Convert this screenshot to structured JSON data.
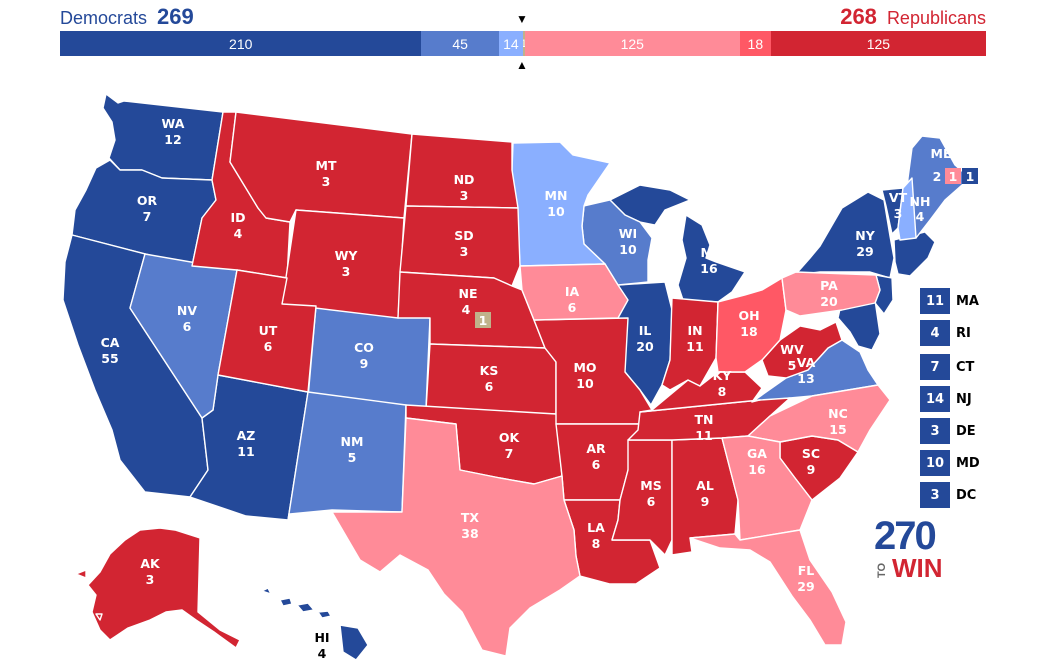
{
  "header": {
    "dem_label": "Democrats",
    "dem_total": "269",
    "rep_total": "268",
    "rep_label": "Republicans"
  },
  "colors": {
    "safe_dem": "#244999",
    "likely_dem": "#577ccc",
    "lean_dem": "#8aafff",
    "lean_rep": "#ff8b98",
    "likely_rep": "#ff5865",
    "safe_rep": "#d22532",
    "tossup": "#c0b28b"
  },
  "bar": [
    {
      "label": "210",
      "value": 210,
      "color": "#244999"
    },
    {
      "label": "45",
      "value": 45,
      "color": "#577ccc"
    },
    {
      "label": "14",
      "value": 14,
      "color": "#8aafff"
    },
    {
      "label": "1",
      "value": 1,
      "color": "#c0b28b"
    },
    {
      "label": "125",
      "value": 125,
      "color": "#ff8b98"
    },
    {
      "label": "18",
      "value": 18,
      "color": "#ff5865"
    },
    {
      "label": "125",
      "value": 125,
      "color": "#d22532"
    }
  ],
  "states": {
    "WA": {
      "abbr": "WA",
      "ev": "12"
    },
    "OR": {
      "abbr": "OR",
      "ev": "7"
    },
    "CA": {
      "abbr": "CA",
      "ev": "55"
    },
    "NV": {
      "abbr": "NV",
      "ev": "6"
    },
    "ID": {
      "abbr": "ID",
      "ev": "4"
    },
    "MT": {
      "abbr": "MT",
      "ev": "3"
    },
    "WY": {
      "abbr": "WY",
      "ev": "3"
    },
    "UT": {
      "abbr": "UT",
      "ev": "6"
    },
    "AZ": {
      "abbr": "AZ",
      "ev": "11"
    },
    "CO": {
      "abbr": "CO",
      "ev": "9"
    },
    "NM": {
      "abbr": "NM",
      "ev": "5"
    },
    "ND": {
      "abbr": "ND",
      "ev": "3"
    },
    "SD": {
      "abbr": "SD",
      "ev": "3"
    },
    "NE": {
      "abbr": "NE",
      "ev": "4",
      "district": "1"
    },
    "KS": {
      "abbr": "KS",
      "ev": "6"
    },
    "OK": {
      "abbr": "OK",
      "ev": "7"
    },
    "TX": {
      "abbr": "TX",
      "ev": "38"
    },
    "MN": {
      "abbr": "MN",
      "ev": "10"
    },
    "IA": {
      "abbr": "IA",
      "ev": "6"
    },
    "MO": {
      "abbr": "MO",
      "ev": "10"
    },
    "AR": {
      "abbr": "AR",
      "ev": "6"
    },
    "LA": {
      "abbr": "LA",
      "ev": "8"
    },
    "WI": {
      "abbr": "WI",
      "ev": "10"
    },
    "IL": {
      "abbr": "IL",
      "ev": "20"
    },
    "MI": {
      "abbr": "MI",
      "ev": "16"
    },
    "IN": {
      "abbr": "IN",
      "ev": "11"
    },
    "OH": {
      "abbr": "OH",
      "ev": "18"
    },
    "KY": {
      "abbr": "KY",
      "ev": "8"
    },
    "TN": {
      "abbr": "TN",
      "ev": "11"
    },
    "MS": {
      "abbr": "MS",
      "ev": "6"
    },
    "AL": {
      "abbr": "AL",
      "ev": "9"
    },
    "GA": {
      "abbr": "GA",
      "ev": "16"
    },
    "FL": {
      "abbr": "FL",
      "ev": "29"
    },
    "SC": {
      "abbr": "SC",
      "ev": "9"
    },
    "NC": {
      "abbr": "NC",
      "ev": "15"
    },
    "VA": {
      "abbr": "VA",
      "ev": "13"
    },
    "WV": {
      "abbr": "WV",
      "ev": "5"
    },
    "PA": {
      "abbr": "PA",
      "ev": "20"
    },
    "NY": {
      "abbr": "NY",
      "ev": "29"
    },
    "VT": {
      "abbr": "VT",
      "ev": "3"
    },
    "NH": {
      "abbr": "NH",
      "ev": "4"
    },
    "ME": {
      "abbr": "ME",
      "ev": "2",
      "d1": "1",
      "d2": "1"
    },
    "AK": {
      "abbr": "AK",
      "ev": "3"
    },
    "HI": {
      "abbr": "HI",
      "ev": "4"
    }
  },
  "legend": [
    {
      "ev": "11",
      "abbr": "MA"
    },
    {
      "ev": "4",
      "abbr": "RI"
    },
    {
      "ev": "7",
      "abbr": "CT"
    },
    {
      "ev": "14",
      "abbr": "NJ"
    },
    {
      "ev": "3",
      "abbr": "DE"
    },
    {
      "ev": "10",
      "abbr": "MD"
    },
    {
      "ev": "3",
      "abbr": "DC"
    }
  ],
  "logo": {
    "number": "270",
    "to": "TO",
    "win": "WIN"
  }
}
